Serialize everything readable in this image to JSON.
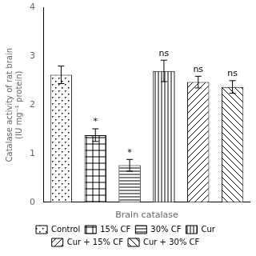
{
  "chart_data": {
    "type": "bar",
    "categories": [
      "Control",
      "15% CF",
      "30% CF",
      "Cur",
      "Cur + 15% CF",
      "Cur + 30% CF"
    ],
    "values": [
      2.62,
      1.38,
      0.76,
      2.7,
      2.47,
      2.37
    ],
    "errors": [
      0.18,
      0.13,
      0.12,
      0.22,
      0.12,
      0.13
    ],
    "annotations": [
      null,
      "*",
      "*",
      "ns",
      "ns",
      "ns"
    ],
    "xlabel": "Brain catalase",
    "ylabel": "Catalase activity of rat brain\n(IU mg⁻¹ protein)",
    "ylim": [
      0,
      4
    ],
    "yticks": [
      0,
      1,
      2,
      3,
      4
    ],
    "color": "white",
    "grid": false,
    "legend": "bottom",
    "tick_labels": "y"
  }
}
